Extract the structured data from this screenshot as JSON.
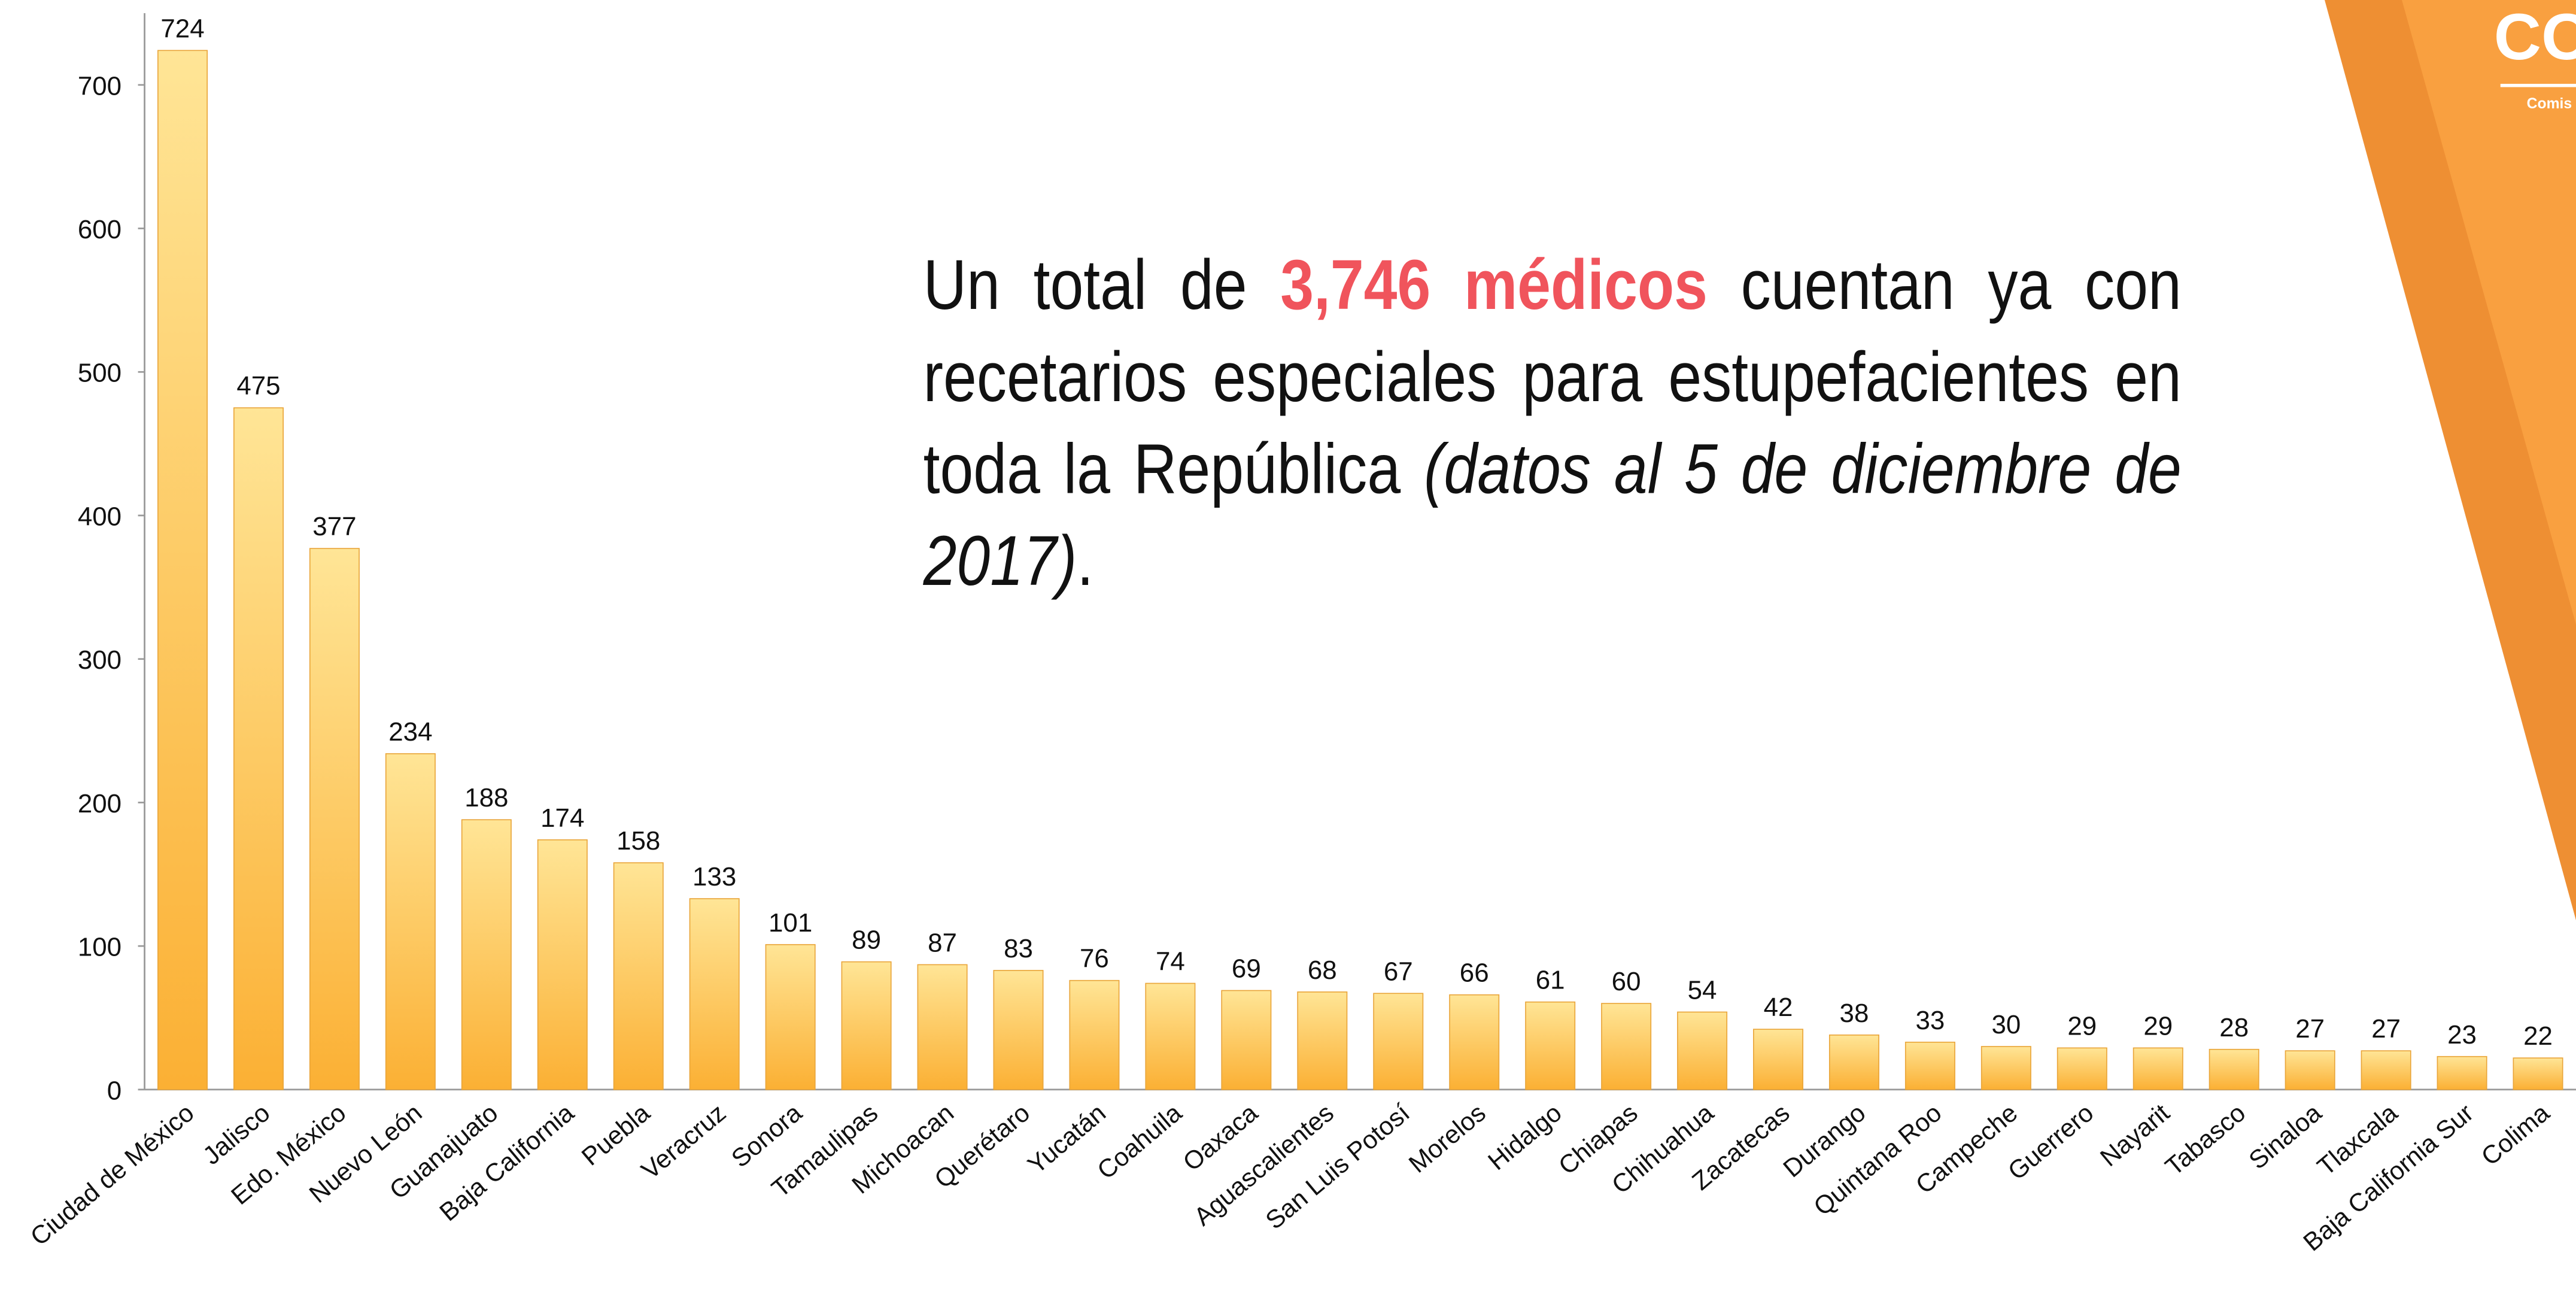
{
  "chart_data": {
    "type": "bar",
    "categories": [
      "Ciudad de México",
      "Jalisco",
      "Edo. México",
      "Nuevo León",
      "Guanajuato",
      "Baja California",
      "Puebla",
      "Veracruz",
      "Sonora",
      "Tamaulipas",
      "Michoacan",
      "Querétaro",
      "Yucatán",
      "Coahuila",
      "Oaxaca",
      "Aguascalientes",
      "San Luis Potosí",
      "Morelos",
      "Hidalgo",
      "Chiapas",
      "Chihuahua",
      "Zacatecas",
      "Durango",
      "Quintana Roo",
      "Campeche",
      "Guerrero",
      "Nayarit",
      "Tabasco",
      "Sinaloa",
      "Tlaxcala",
      "Baja California Sur",
      "Colima"
    ],
    "values": [
      724,
      475,
      377,
      234,
      188,
      174,
      158,
      133,
      101,
      89,
      87,
      83,
      76,
      74,
      69,
      68,
      67,
      66,
      61,
      60,
      54,
      42,
      38,
      33,
      30,
      29,
      29,
      28,
      27,
      27,
      23,
      22
    ],
    "color": "#fbb034",
    "ylim": [
      0,
      750
    ],
    "yticks": [
      0,
      100,
      200,
      300,
      400,
      500,
      600,
      700
    ],
    "annotation": [
      "Un total de ",
      "3,746 médicos",
      " cuentan ya con recetarios especiales para estupefacientes en toda la República ",
      "(datos al 5 de diciembre de 2017)",
      "."
    ],
    "logo": {
      "mark": "CO",
      "text": "Comis"
    }
  }
}
